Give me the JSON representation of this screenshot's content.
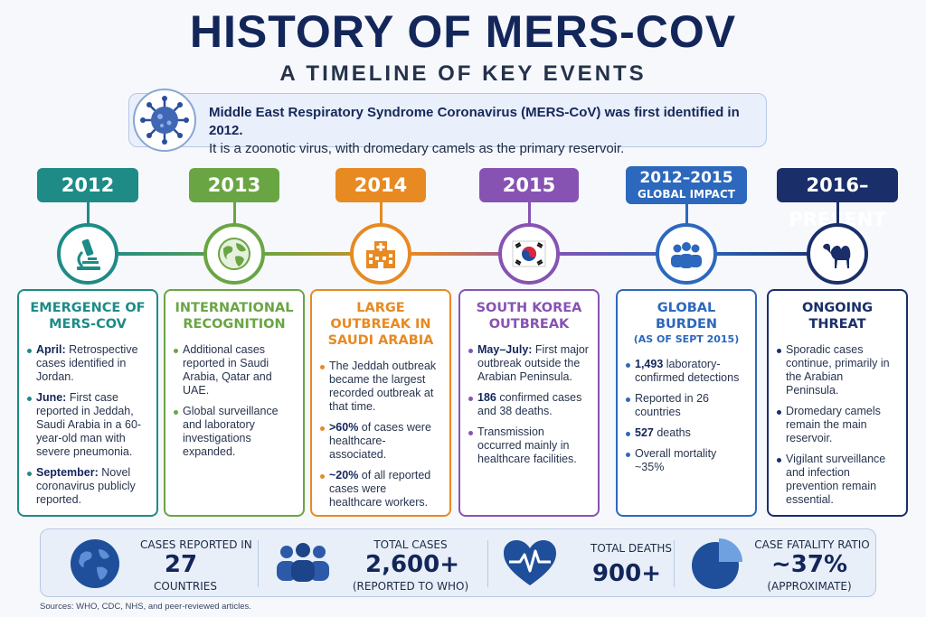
{
  "header": {
    "title": "HISTORY OF MERS-COV",
    "subtitle": "A TIMELINE OF KEY EVENTS"
  },
  "intro": {
    "line1": "Middle East Respiratory Syndrome Coronavirus (MERS-CoV) was first identified in 2012.",
    "line2": "It is a zoonotic virus, with dromedary camels as the primary reservoir.",
    "icon": "virus-icon"
  },
  "timeline": [
    {
      "year": "2012",
      "year_sub": "",
      "color": "#1e8b87",
      "icon": "microscope-icon",
      "title": "EMERGENCE OF MERS-COV",
      "title_sub": "",
      "bullets": [
        {
          "lead": "April:",
          "text": " Retrospective cases identified in Jordan."
        },
        {
          "lead": "June:",
          "text": " First case reported in Jeddah, Saudi Arabia in a 60-year-old man with severe pneumonia."
        },
        {
          "lead": "September:",
          "text": " Novel coronavirus publicly reported."
        }
      ]
    },
    {
      "year": "2013",
      "year_sub": "",
      "color": "#6aa544",
      "icon": "globe-icon",
      "title": "INTERNATIONAL RECOGNITION",
      "title_sub": "",
      "bullets": [
        {
          "lead": "",
          "text": "Additional cases reported in Saudi Arabia, Qatar and UAE."
        },
        {
          "lead": "",
          "text": "Global surveillance and laboratory investigations expanded."
        }
      ]
    },
    {
      "year": "2014",
      "year_sub": "",
      "color": "#e78a22",
      "icon": "hospital-icon",
      "title": "LARGE OUTBREAK IN SAUDI ARABIA",
      "title_sub": "",
      "bullets": [
        {
          "lead": "",
          "text": "The Jeddah outbreak became the largest recorded outbreak at that time."
        },
        {
          "lead": ">60%",
          "text": " of cases were healthcare-associated."
        },
        {
          "lead": "~20%",
          "text": " of all reported cases were healthcare workers."
        }
      ]
    },
    {
      "year": "2015",
      "year_sub": "",
      "color": "#8753b3",
      "icon": "south-korea-flag-icon",
      "title": "SOUTH KOREA OUTBREAK",
      "title_sub": "",
      "bullets": [
        {
          "lead": "May–July:",
          "text": " First major outbreak outside the Arabian Peninsula."
        },
        {
          "lead": "186",
          "text": " confirmed cases and 38 deaths."
        },
        {
          "lead": "",
          "text": "Transmission occurred mainly in healthcare facilities."
        }
      ]
    },
    {
      "year": "2012–2015",
      "year_sub": "GLOBAL IMPACT",
      "color": "#2c68bd",
      "icon": "people-group-icon",
      "title": "GLOBAL BURDEN",
      "title_sub": "(AS OF SEPT 2015)",
      "bullets": [
        {
          "lead": "1,493",
          "text": " laboratory-confirmed detections"
        },
        {
          "lead": "",
          "text": "Reported in 26 countries"
        },
        {
          "lead": "527",
          "text": " deaths"
        },
        {
          "lead": "",
          "text": "Overall mortality ~35%"
        }
      ]
    },
    {
      "year": "2016–PRESENT",
      "year_sub": "",
      "color": "#1a2f69",
      "icon": "camel-icon",
      "title": "ONGOING THREAT",
      "title_sub": "",
      "bullets": [
        {
          "lead": "",
          "text": "Sporadic cases continue, primarily in the Arabian Peninsula."
        },
        {
          "lead": "",
          "text": "Dromedary camels remain the main reservoir."
        },
        {
          "lead": "",
          "text": "Vigilant surveillance and infection prevention remain essential."
        }
      ]
    }
  ],
  "stats": [
    {
      "label": "CASES REPORTED IN",
      "value": "27",
      "foot": "COUNTRIES",
      "icon": "globe-icon"
    },
    {
      "label": "TOTAL CASES",
      "value": "2,600+",
      "foot": "(REPORTED TO WHO)",
      "icon": "people-group-icon"
    },
    {
      "label": "TOTAL DEATHS",
      "value": "900+",
      "foot": "",
      "icon": "heart-pulse-icon"
    },
    {
      "label": "CASE FATALITY RATIO",
      "value": "~37%",
      "foot": "(APPROXIMATE)",
      "icon": "pie-chart-icon"
    }
  ],
  "sources": "Sources: WHO, CDC, NHS, and peer-reviewed articles."
}
